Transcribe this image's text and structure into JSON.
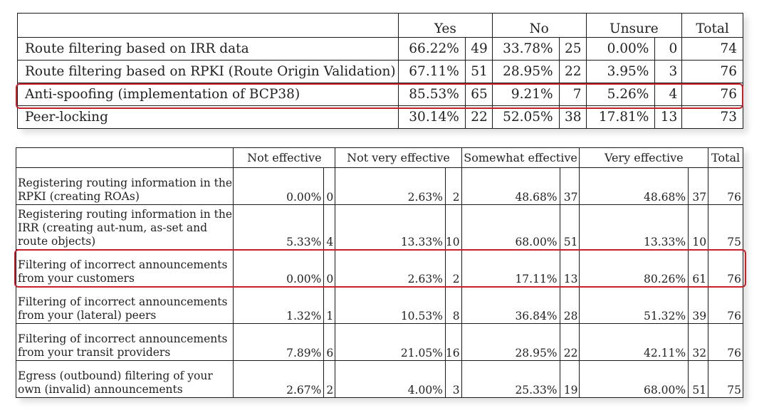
{
  "table1": {
    "headers": [
      "Yes",
      "No",
      "Unsure",
      "Total"
    ],
    "rows": [
      {
        "label": "Route filtering based on IRR data",
        "yes_pct": "66.22%",
        "yes_n": "49",
        "no_pct": "33.78%",
        "no_n": "25",
        "unsure_pct": "0.00%",
        "unsure_n": "0",
        "total": "74"
      },
      {
        "label": "Route filtering based on RPKI (Route Origin Validation)",
        "yes_pct": "67.11%",
        "yes_n": "51",
        "no_pct": "28.95%",
        "no_n": "22",
        "unsure_pct": "3.95%",
        "unsure_n": "3",
        "total": "76"
      },
      {
        "label": "Anti-spoofing (implementation of BCP38)",
        "yes_pct": "85.53%",
        "yes_n": "65",
        "no_pct": "9.21%",
        "no_n": "7",
        "unsure_pct": "5.26%",
        "unsure_n": "4",
        "total": "76"
      },
      {
        "label": "Peer-locking",
        "yes_pct": "30.14%",
        "yes_n": "22",
        "no_pct": "52.05%",
        "no_n": "38",
        "unsure_pct": "17.81%",
        "unsure_n": "13",
        "total": "73"
      }
    ]
  },
  "table2": {
    "headers": [
      "Not effective",
      "Not very effective",
      "Somewhat effective",
      "Very effective",
      "Total"
    ],
    "rows": [
      {
        "label": "Registering routing information in the RPKI (creating ROAs)",
        "ne_pct": "0.00%",
        "ne_n": "0",
        "nve_pct": "2.63%",
        "nve_n": "2",
        "se_pct": "48.68%",
        "se_n": "37",
        "ve_pct": "48.68%",
        "ve_n": "37",
        "total": "76"
      },
      {
        "label": "Registering routing information in the IRR (creating aut-num, as-set and route objects)",
        "ne_pct": "5.33%",
        "ne_n": "4",
        "nve_pct": "13.33%",
        "nve_n": "10",
        "se_pct": "68.00%",
        "se_n": "51",
        "ve_pct": "13.33%",
        "ve_n": "10",
        "total": "75"
      },
      {
        "label": "Filtering of incorrect announcements from your customers",
        "ne_pct": "0.00%",
        "ne_n": "0",
        "nve_pct": "2.63%",
        "nve_n": "2",
        "se_pct": "17.11%",
        "se_n": "13",
        "ve_pct": "80.26%",
        "ve_n": "61",
        "total": "76"
      },
      {
        "label": "Filtering of incorrect announcements from your (lateral) peers",
        "ne_pct": "1.32%",
        "ne_n": "1",
        "nve_pct": "10.53%",
        "nve_n": "8",
        "se_pct": "36.84%",
        "se_n": "28",
        "ve_pct": "51.32%",
        "ve_n": "39",
        "total": "76"
      },
      {
        "label": "Filtering of incorrect announcements from your transit providers",
        "ne_pct": "7.89%",
        "ne_n": "6",
        "nve_pct": "21.05%",
        "nve_n": "16",
        "se_pct": "28.95%",
        "se_n": "22",
        "ve_pct": "42.11%",
        "ve_n": "32",
        "total": "76"
      },
      {
        "label": "Egress (outbound) filtering of your own (invalid) announcements",
        "ne_pct": "2.67%",
        "ne_n": "2",
        "nve_pct": "4.00%",
        "nve_n": "3",
        "se_pct": "25.33%",
        "se_n": "19",
        "ve_pct": "68.00%",
        "ve_n": "51",
        "total": "75"
      }
    ]
  },
  "highlight_color": "#c8202a"
}
